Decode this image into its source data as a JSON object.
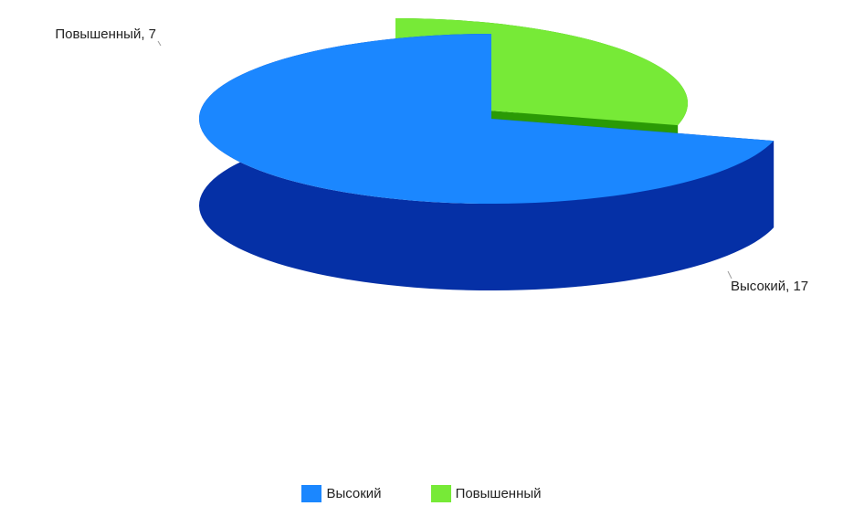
{
  "chart_data": {
    "type": "pie",
    "style": "3d-exploded",
    "slices": [
      {
        "name": "Высокий",
        "value": 17,
        "label": "Высокий, 17",
        "color": "#1b87ff",
        "side_color": "#0530a6"
      },
      {
        "name": "Повышенный",
        "value": 7,
        "label": "Повышенный, 7",
        "color": "#77ea37",
        "side_color": "#2a9a05"
      }
    ],
    "legend": {
      "placement": "bottom",
      "items": [
        "Высокий",
        "Повышенный"
      ]
    }
  }
}
